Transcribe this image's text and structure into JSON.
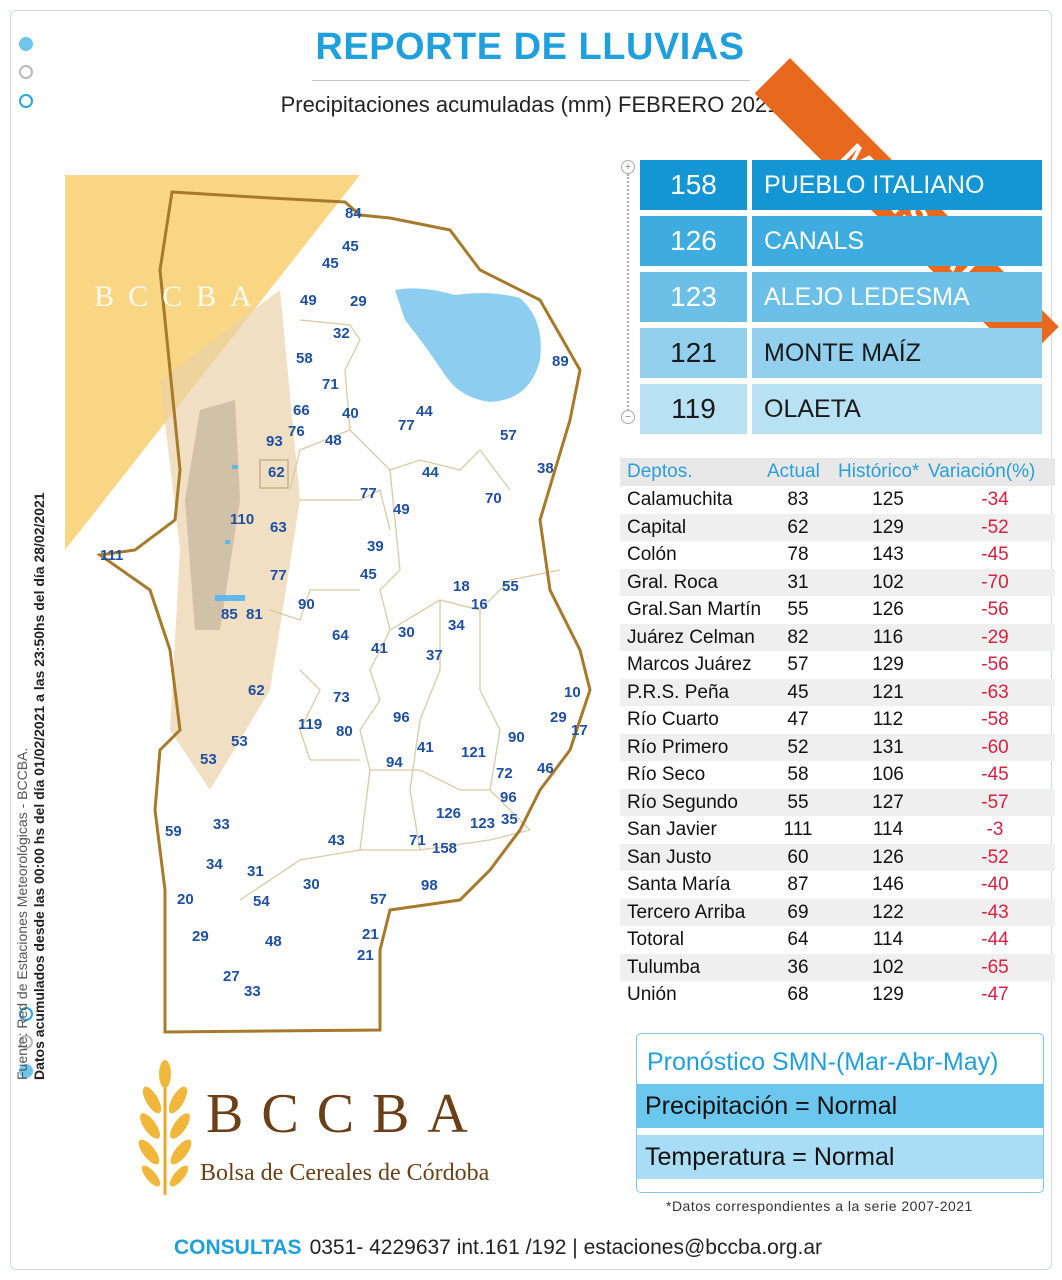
{
  "header": {
    "title": "REPORTE DE LLUVIAS",
    "subtitle": "Precipitaciones acumuladas (mm) FEBRERO 2021",
    "ribbon": "MENSUAL"
  },
  "side_note": {
    "line1": "Fuente: Red de Estaciones Meteorológicas - BCCBA.",
    "line2": "Datos acumulados desde las 00:00 hs del día 01/02/2021 a las 23:50hs del día 28/02/2021"
  },
  "colors": {
    "accent": "#1f9fdc",
    "ribbon": "#e8691e",
    "negative": "#d8203f",
    "map_value": "#1e4fa3",
    "logo_brown": "#6b3f17"
  },
  "top_stations": [
    {
      "value": "158",
      "name": "PUEBLO ITALIANO",
      "color": "#1596d4"
    },
    {
      "value": "126",
      "name": "CANALS",
      "color": "#3eacdf"
    },
    {
      "value": "123",
      "name": "ALEJO LEDESMA",
      "color": "#6cc0e8"
    },
    {
      "value": "121",
      "name": "MONTE MAÍZ",
      "color": "#93d0ee"
    },
    {
      "value": "119",
      "name": "OLAETA",
      "color": "#b9e1f4"
    }
  ],
  "departments": {
    "headers": {
      "name": "Deptos.",
      "actual": "Actual",
      "historical": "Histórico*",
      "variation": "Variación(%)"
    },
    "rows": [
      {
        "name": "Calamuchita",
        "actual": "83",
        "historical": "125",
        "variation": "-34"
      },
      {
        "name": "Capital",
        "actual": "62",
        "historical": "129",
        "variation": "-52"
      },
      {
        "name": "Colón",
        "actual": "78",
        "historical": "143",
        "variation": "-45"
      },
      {
        "name": "Gral. Roca",
        "actual": "31",
        "historical": "102",
        "variation": "-70"
      },
      {
        "name": "Gral.San Martín",
        "actual": "55",
        "historical": "126",
        "variation": "-56"
      },
      {
        "name": "Juárez Celman",
        "actual": "82",
        "historical": "116",
        "variation": "-29"
      },
      {
        "name": "Marcos Juárez",
        "actual": "57",
        "historical": "129",
        "variation": "-56"
      },
      {
        "name": "P.R.S. Peña",
        "actual": "45",
        "historical": "121",
        "variation": "-63"
      },
      {
        "name": "Río Cuarto",
        "actual": "47",
        "historical": "112",
        "variation": "-58"
      },
      {
        "name": "Río Primero",
        "actual": "52",
        "historical": "131",
        "variation": "-60"
      },
      {
        "name": "Río Seco",
        "actual": "58",
        "historical": "106",
        "variation": "-45"
      },
      {
        "name": "Río Segundo",
        "actual": "55",
        "historical": "127",
        "variation": "-57"
      },
      {
        "name": "San Javier",
        "actual": "111",
        "historical": "114",
        "variation": "-3"
      },
      {
        "name": "San Justo",
        "actual": "60",
        "historical": "126",
        "variation": "-52"
      },
      {
        "name": "Santa María",
        "actual": "87",
        "historical": "146",
        "variation": "-40"
      },
      {
        "name": "Tercero Arriba",
        "actual": "69",
        "historical": "122",
        "variation": "-43"
      },
      {
        "name": "Totoral",
        "actual": "64",
        "historical": "114",
        "variation": "-44"
      },
      {
        "name": "Tulumba",
        "actual": "36",
        "historical": "102",
        "variation": "-65"
      },
      {
        "name": "Unión",
        "actual": "68",
        "historical": "129",
        "variation": "-47"
      }
    ]
  },
  "forecast": {
    "title": "Pronóstico SMN-(Mar-Abr-May)",
    "precipitation": "Precipitación = Normal",
    "temperature": "Temperatura = Normal"
  },
  "footnote": "*Datos  correspondientes a la serie 2007-2021",
  "contact": {
    "label": "CONSULTAS",
    "text": "0351- 4229637 int.161 /192 | estaciones@bccba.org.ar"
  },
  "logo": {
    "brand": "BCCBA",
    "subtitle": "Bolsa de Cereales de Córdoba",
    "watermark": "BCCBA"
  },
  "map_values": [
    "84",
    "45",
    "45",
    "49",
    "29",
    "32",
    "58",
    "71",
    "89",
    "66",
    "76",
    "40",
    "77",
    "44",
    "93",
    "48",
    "57",
    "62",
    "38",
    "44",
    "77",
    "49",
    "70",
    "110",
    "63",
    "39",
    "111",
    "77",
    "45",
    "18",
    "55",
    "16",
    "85",
    "81",
    "90",
    "34",
    "64",
    "41",
    "30",
    "37",
    "62",
    "10",
    "73",
    "96",
    "29",
    "119",
    "80",
    "90",
    "17",
    "53",
    "53",
    "94",
    "41",
    "121",
    "72",
    "46",
    "96",
    "59",
    "33",
    "126",
    "123",
    "35",
    "43",
    "71",
    "158",
    "34",
    "31",
    "98",
    "20",
    "30",
    "57",
    "54",
    "29",
    "48",
    "21",
    "21",
    "27",
    "33"
  ]
}
